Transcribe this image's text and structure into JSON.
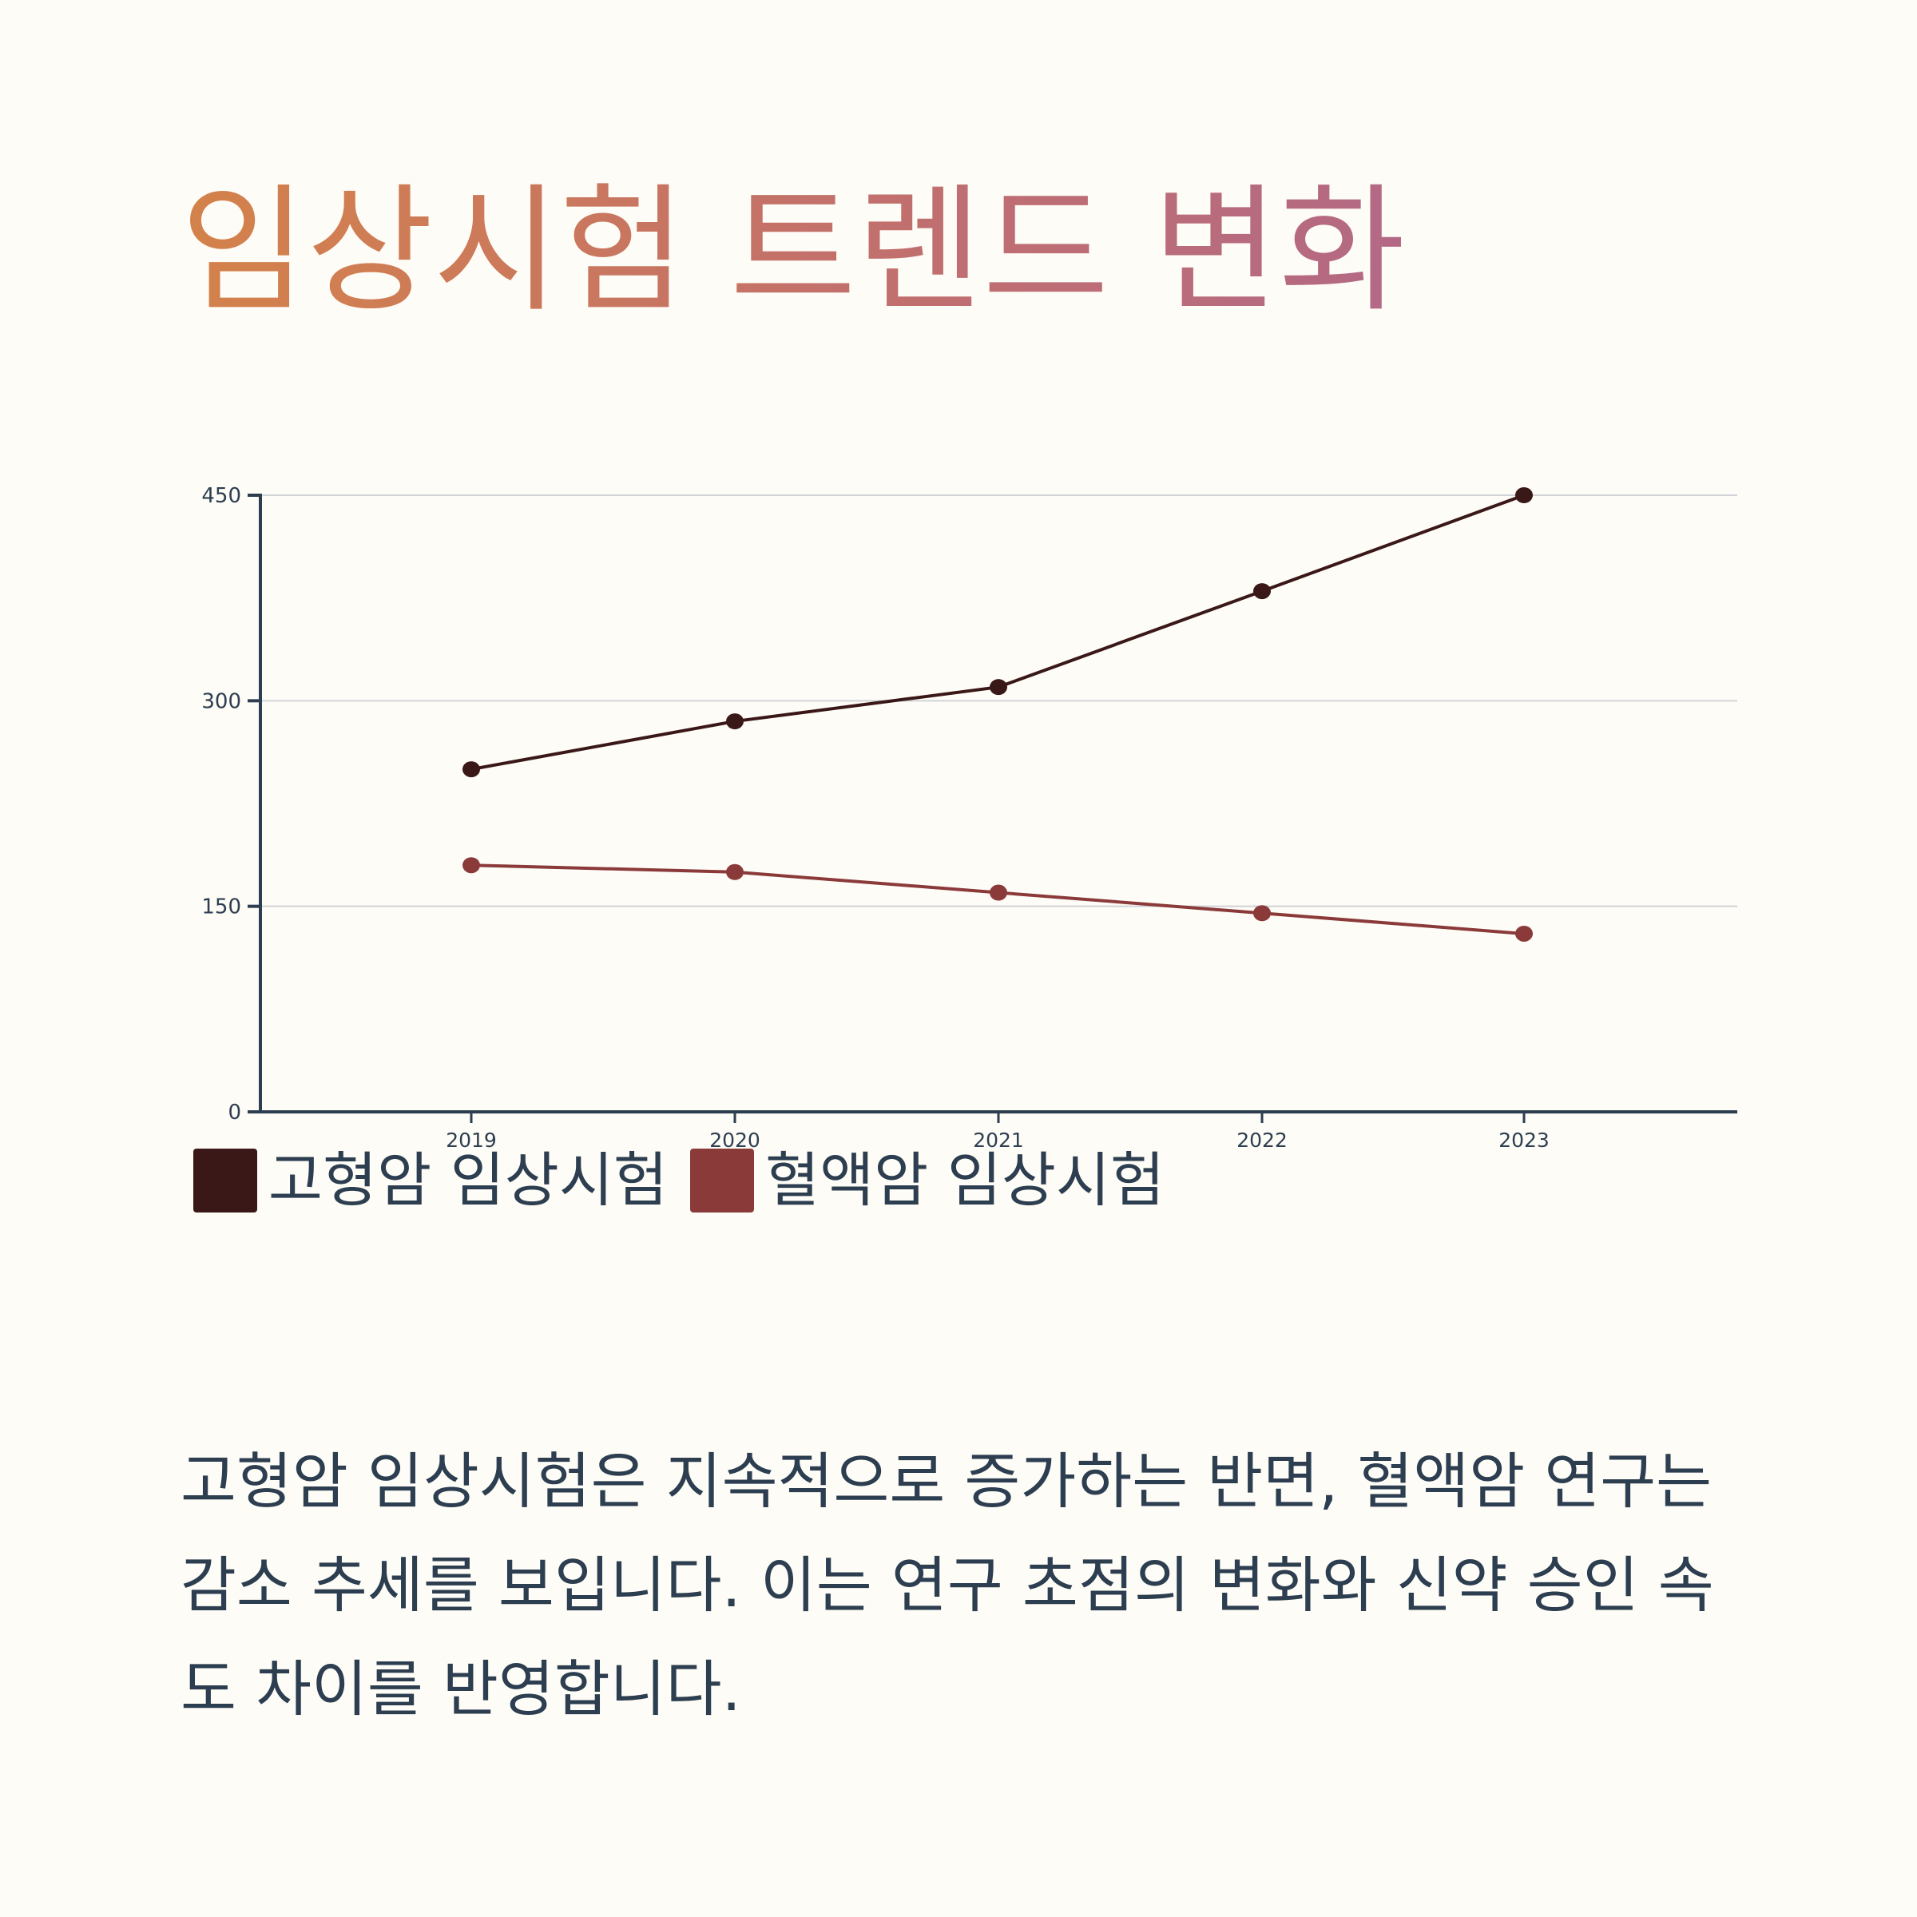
{
  "title": "임상시험 트렌드 변화",
  "description": "고형암 임상시험은 지속적으로 증가하는 반면, 혈액암 연구는 감소 추세를 보입니다. 이는 연구 초점의 변화와 신약 승인 속도 차이를 반영합니다.",
  "colors": {
    "background": "#fefcf6",
    "title_gradient_start": "#d4824a",
    "title_gradient_end": "#b36985",
    "text": "#2c3e50",
    "axis": "#2c3e50",
    "grid": "#d0d4d8"
  },
  "chart_data": {
    "type": "line",
    "x": [
      "2019",
      "2020",
      "2021",
      "2022",
      "2023"
    ],
    "yticks": [
      "0",
      "150",
      "300",
      "450"
    ],
    "ylim": [
      0,
      450
    ],
    "grid": true,
    "legend_position": "bottom",
    "series": [
      {
        "name": "고형암 임상시험",
        "color": "#3a1818",
        "values": [
          250,
          285,
          310,
          380,
          450
        ]
      },
      {
        "name": "혈액암 임상시험",
        "color": "#8b3a3a",
        "values": [
          180,
          175,
          160,
          145,
          130
        ]
      }
    ]
  }
}
